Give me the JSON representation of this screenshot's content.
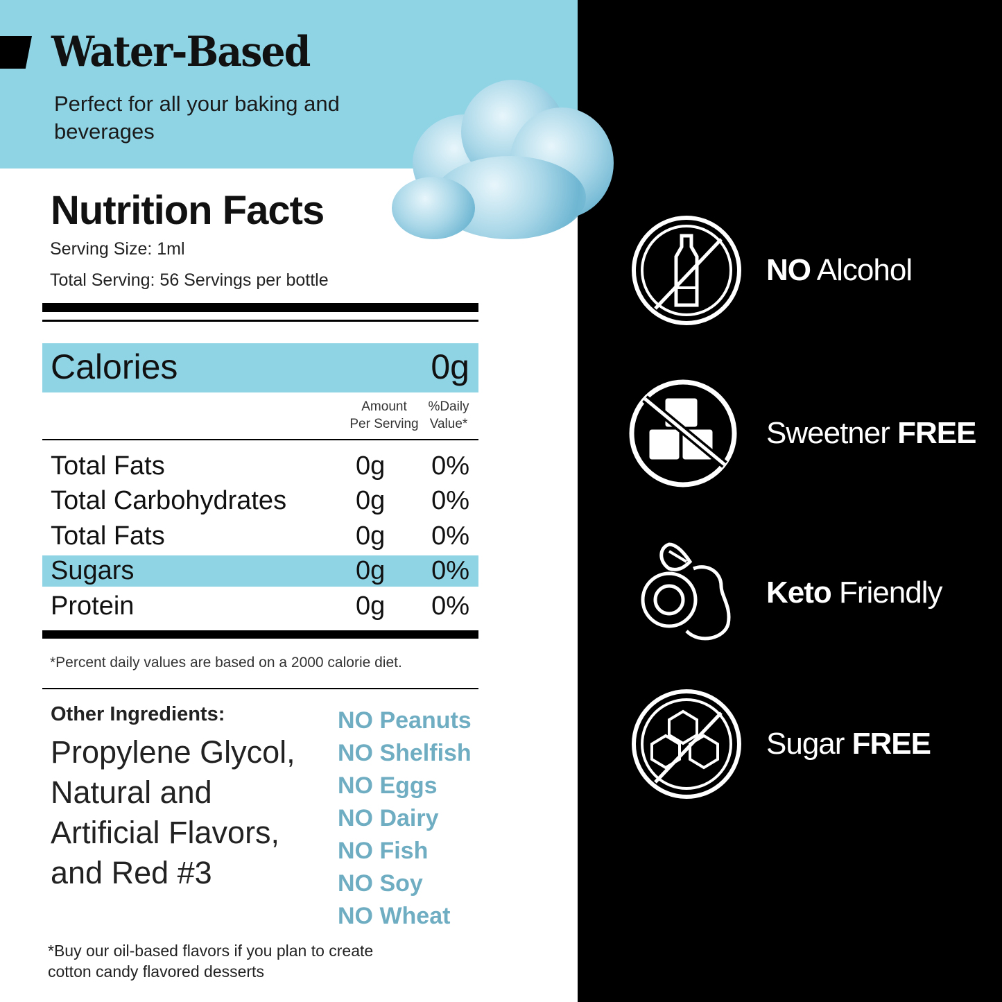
{
  "header": {
    "title": "Water-Based",
    "subtitle": "Perfect for all your baking and beverages"
  },
  "nutrition": {
    "title": "Nutrition Facts",
    "serving_size": "Serving Size: 1ml",
    "total_serving": "Total Serving: 56 Servings per bottle",
    "calories_label": "Calories",
    "calories_value": "0g",
    "col_amount": [
      "Amount",
      "Per Serving"
    ],
    "col_daily": [
      "%Daily",
      "Value*"
    ],
    "rows": [
      {
        "name": "Total Fats",
        "amount": "0g",
        "daily": "0%"
      },
      {
        "name": "Total Carbohydrates",
        "amount": "0g",
        "daily": "0%"
      },
      {
        "name": "Total Fats",
        "amount": "0g",
        "daily": "0%"
      },
      {
        "name": "Sugars",
        "amount": "0g",
        "daily": "0%",
        "highlight": true
      },
      {
        "name": "Protein",
        "amount": "0g",
        "daily": "0%"
      }
    ],
    "footnote": "*Percent daily values are based on a 2000 calorie diet."
  },
  "ingredients": {
    "label": "Other Ingredients:",
    "text": "Propylene Glycol, Natural and Artificial Flavors, and Red #3"
  },
  "allergens": [
    "NO Peanuts",
    "NO Shelfish",
    "NO Eggs",
    "NO Dairy",
    "NO Fish",
    "NO Soy",
    "NO Wheat"
  ],
  "note": "*Buy our oil-based flavors if you plan to create cotton candy flavored desserts",
  "features": [
    {
      "icon": "no-alcohol-icon",
      "bold": "NO",
      "text": " Alcohol",
      "bold_first": true
    },
    {
      "icon": "no-sweetener-icon",
      "bold": "FREE",
      "text": "Sweetner ",
      "bold_first": false
    },
    {
      "icon": "avocado-icon",
      "bold": "Keto",
      "text": " Friendly",
      "bold_first": true
    },
    {
      "icon": "no-sugar-icon",
      "bold": "FREE",
      "text": "Sugar ",
      "bold_first": false
    }
  ],
  "colors": {
    "accent": "#8fd4e5",
    "allergen": "#6fadc2",
    "dark": "#000000"
  }
}
